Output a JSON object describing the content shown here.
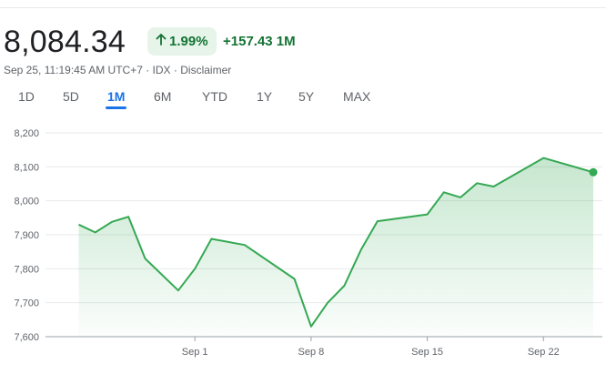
{
  "header": {
    "price": "8,084.34",
    "percent_change": "1.99%",
    "absolute_change": "+157.43 1M",
    "timestamp": "Sep 25, 11:19:45 AM UTC+7",
    "separator": " · ",
    "exchange": "IDX",
    "disclaimer": "Disclaimer"
  },
  "tabs": [
    {
      "label": "1D",
      "active": false
    },
    {
      "label": "5D",
      "active": false
    },
    {
      "label": "1M",
      "active": true
    },
    {
      "label": "6M",
      "active": false
    },
    {
      "label": "YTD",
      "active": false
    },
    {
      "label": "1Y",
      "active": false
    },
    {
      "label": "5Y",
      "active": false
    },
    {
      "label": "MAX",
      "active": false
    }
  ],
  "colors": {
    "line": "#34a853",
    "positive_text": "#137333",
    "badge_bg": "#e6f4ea",
    "active_tab": "#1a73e8",
    "grid": "#e8eaed"
  },
  "chart_data": {
    "type": "area",
    "y_ticks": [
      "8,200",
      "8,100",
      "8,000",
      "7,900",
      "7,800",
      "7,700",
      "7,600"
    ],
    "ylim": [
      7600,
      8200
    ],
    "x_ticks": [
      {
        "label": "Sep 1",
        "day": 1
      },
      {
        "label": "Sep 8",
        "day": 8
      },
      {
        "label": "Sep 15",
        "day": 15
      },
      {
        "label": "Sep 22",
        "day": 22
      }
    ],
    "xlim_days": [
      -8,
      25
    ],
    "series": [
      {
        "points": [
          {
            "date": "Aug 25",
            "day": -6,
            "value": 7930
          },
          {
            "date": "Aug 26",
            "day": -5,
            "value": 7907
          },
          {
            "date": "Aug 27",
            "day": -4,
            "value": 7938
          },
          {
            "date": "Aug 28",
            "day": -3,
            "value": 7953
          },
          {
            "date": "Aug 29",
            "day": -2,
            "value": 7830
          },
          {
            "date": "Aug 31",
            "day": 0,
            "value": 7736
          },
          {
            "date": "Sep 1",
            "day": 1,
            "value": 7800
          },
          {
            "date": "Sep 2",
            "day": 2,
            "value": 7888
          },
          {
            "date": "Sep 4",
            "day": 4,
            "value": 7870
          },
          {
            "date": "Sep 7",
            "day": 7,
            "value": 7770
          },
          {
            "date": "Sep 8",
            "day": 8,
            "value": 7630
          },
          {
            "date": "Sep 9",
            "day": 9,
            "value": 7700
          },
          {
            "date": "Sep 10",
            "day": 10,
            "value": 7750
          },
          {
            "date": "Sep 11",
            "day": 11,
            "value": 7855
          },
          {
            "date": "Sep 12",
            "day": 12,
            "value": 7940
          },
          {
            "date": "Sep 15",
            "day": 15,
            "value": 7960
          },
          {
            "date": "Sep 16",
            "day": 16,
            "value": 8025
          },
          {
            "date": "Sep 17",
            "day": 17,
            "value": 8010
          },
          {
            "date": "Sep 18",
            "day": 18,
            "value": 8052
          },
          {
            "date": "Sep 19",
            "day": 19,
            "value": 8042
          },
          {
            "date": "Sep 22",
            "day": 22,
            "value": 8126
          },
          {
            "date": "Sep 25",
            "day": 25,
            "value": 8084
          }
        ]
      }
    ],
    "grid": true
  }
}
